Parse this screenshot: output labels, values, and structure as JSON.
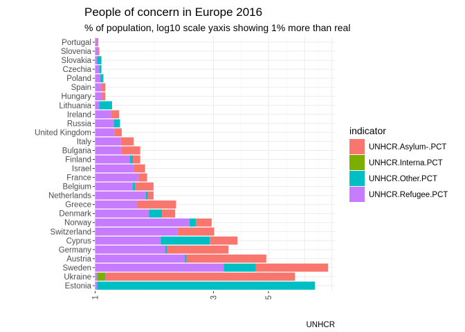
{
  "chart_data": {
    "type": "bar",
    "orientation": "horizontal",
    "stacked": true,
    "title": "People of concern in Europe 2016",
    "subtitle": "% of population, log10 scale yaxis showing 1% more than real",
    "caption": "UNHCR",
    "x_scale": "log10",
    "xlim": [
      1,
      9
    ],
    "x_ticks": [
      1,
      3,
      5
    ],
    "x_tick_labels": [
      "1",
      "3",
      "5"
    ],
    "grid": true,
    "legend": {
      "title": "indicator",
      "placement": "right",
      "entries": [
        {
          "name": "UNHCR.Asylum-.PCT",
          "color": "#F8766D"
        },
        {
          "name": "UNHCR.Interna.PCT",
          "color": "#7CAE00"
        },
        {
          "name": "UNHCR.Other.PCT",
          "color": "#00BFC4"
        },
        {
          "name": "UNHCR.Refugee.PCT",
          "color": "#C77CFF"
        }
      ]
    },
    "categories": [
      "Portugal",
      "Slovenia",
      "Slovakia",
      "Czechia",
      "Poland",
      "Spain",
      "Hungary",
      "Lithuania",
      "Ireland",
      "Russia",
      "United Kingdom",
      "Italy",
      "Bulgaria",
      "Finland",
      "Israel",
      "France",
      "Belgium",
      "Netherlands",
      "Greece",
      "Denmark",
      "Norway",
      "Switzerland",
      "Cyprus",
      "Germany",
      "Austria",
      "Sweden",
      "Ukraine",
      "Estonia"
    ],
    "stack_order": [
      "UNHCR.Refugee.PCT",
      "UNHCR.Interna.PCT",
      "UNHCR.Other.PCT",
      "UNHCR.Asylum-.PCT"
    ],
    "bars": [
      {
        "category": "Portugal",
        "cumulative": [
          1.02,
          1.02,
          1.02,
          1.03
        ]
      },
      {
        "category": "Slovenia",
        "cumulative": [
          1.03,
          1.03,
          1.03,
          1.04
        ]
      },
      {
        "category": "Slovakia",
        "cumulative": [
          1.02,
          1.02,
          1.06,
          1.06
        ]
      },
      {
        "category": "Czechia",
        "cumulative": [
          1.04,
          1.04,
          1.06,
          1.06
        ]
      },
      {
        "category": "Poland",
        "cumulative": [
          1.05,
          1.05,
          1.08,
          1.08
        ]
      },
      {
        "category": "Spain",
        "cumulative": [
          1.06,
          1.06,
          1.06,
          1.1
        ]
      },
      {
        "category": "Hungary",
        "cumulative": [
          1.07,
          1.07,
          1.07,
          1.1
        ]
      },
      {
        "category": "Lithuania",
        "cumulative": [
          1.04,
          1.04,
          1.17,
          1.17
        ]
      },
      {
        "category": "Ireland",
        "cumulative": [
          1.16,
          1.16,
          1.16,
          1.25
        ]
      },
      {
        "category": "Russia",
        "cumulative": [
          1.19,
          1.19,
          1.26,
          1.26
        ]
      },
      {
        "category": "United Kingdom",
        "cumulative": [
          1.2,
          1.2,
          1.2,
          1.28
        ]
      },
      {
        "category": "Italy",
        "cumulative": [
          1.27,
          1.27,
          1.27,
          1.43
        ]
      },
      {
        "category": "Bulgaria",
        "cumulative": [
          1.28,
          1.28,
          1.28,
          1.52
        ]
      },
      {
        "category": "Finland",
        "cumulative": [
          1.38,
          1.38,
          1.42,
          1.52
        ]
      },
      {
        "category": "Israel",
        "cumulative": [
          1.43,
          1.43,
          1.43,
          1.59
        ]
      },
      {
        "category": "France",
        "cumulative": [
          1.5,
          1.5,
          1.5,
          1.62
        ]
      },
      {
        "category": "Belgium",
        "cumulative": [
          1.42,
          1.42,
          1.45,
          1.72
        ]
      },
      {
        "category": "Netherlands",
        "cumulative": [
          1.6,
          1.6,
          1.63,
          1.72
        ]
      },
      {
        "category": "Greece",
        "cumulative": [
          1.48,
          1.48,
          1.48,
          2.12
        ]
      },
      {
        "category": "Denmark",
        "cumulative": [
          1.65,
          1.65,
          1.86,
          2.1
        ]
      },
      {
        "category": "Norway",
        "cumulative": [
          2.4,
          2.4,
          2.55,
          2.95
        ]
      },
      {
        "category": "Switzerland",
        "cumulative": [
          2.15,
          2.15,
          2.15,
          3.02
        ]
      },
      {
        "category": "Cyprus",
        "cumulative": [
          1.84,
          1.84,
          2.9,
          3.75
        ]
      },
      {
        "category": "Germany",
        "cumulative": [
          1.92,
          1.92,
          1.95,
          3.45
        ]
      },
      {
        "category": "Austria",
        "cumulative": [
          2.3,
          2.3,
          2.34,
          4.9
        ]
      },
      {
        "category": "Sweden",
        "cumulative": [
          3.3,
          3.3,
          4.45,
          8.7
        ]
      },
      {
        "category": "Ukraine",
        "cumulative": [
          1.02,
          1.09,
          1.1,
          6.4
        ]
      },
      {
        "category": "Estonia",
        "cumulative": [
          1.02,
          1.02,
          7.7,
          7.7
        ]
      }
    ]
  }
}
